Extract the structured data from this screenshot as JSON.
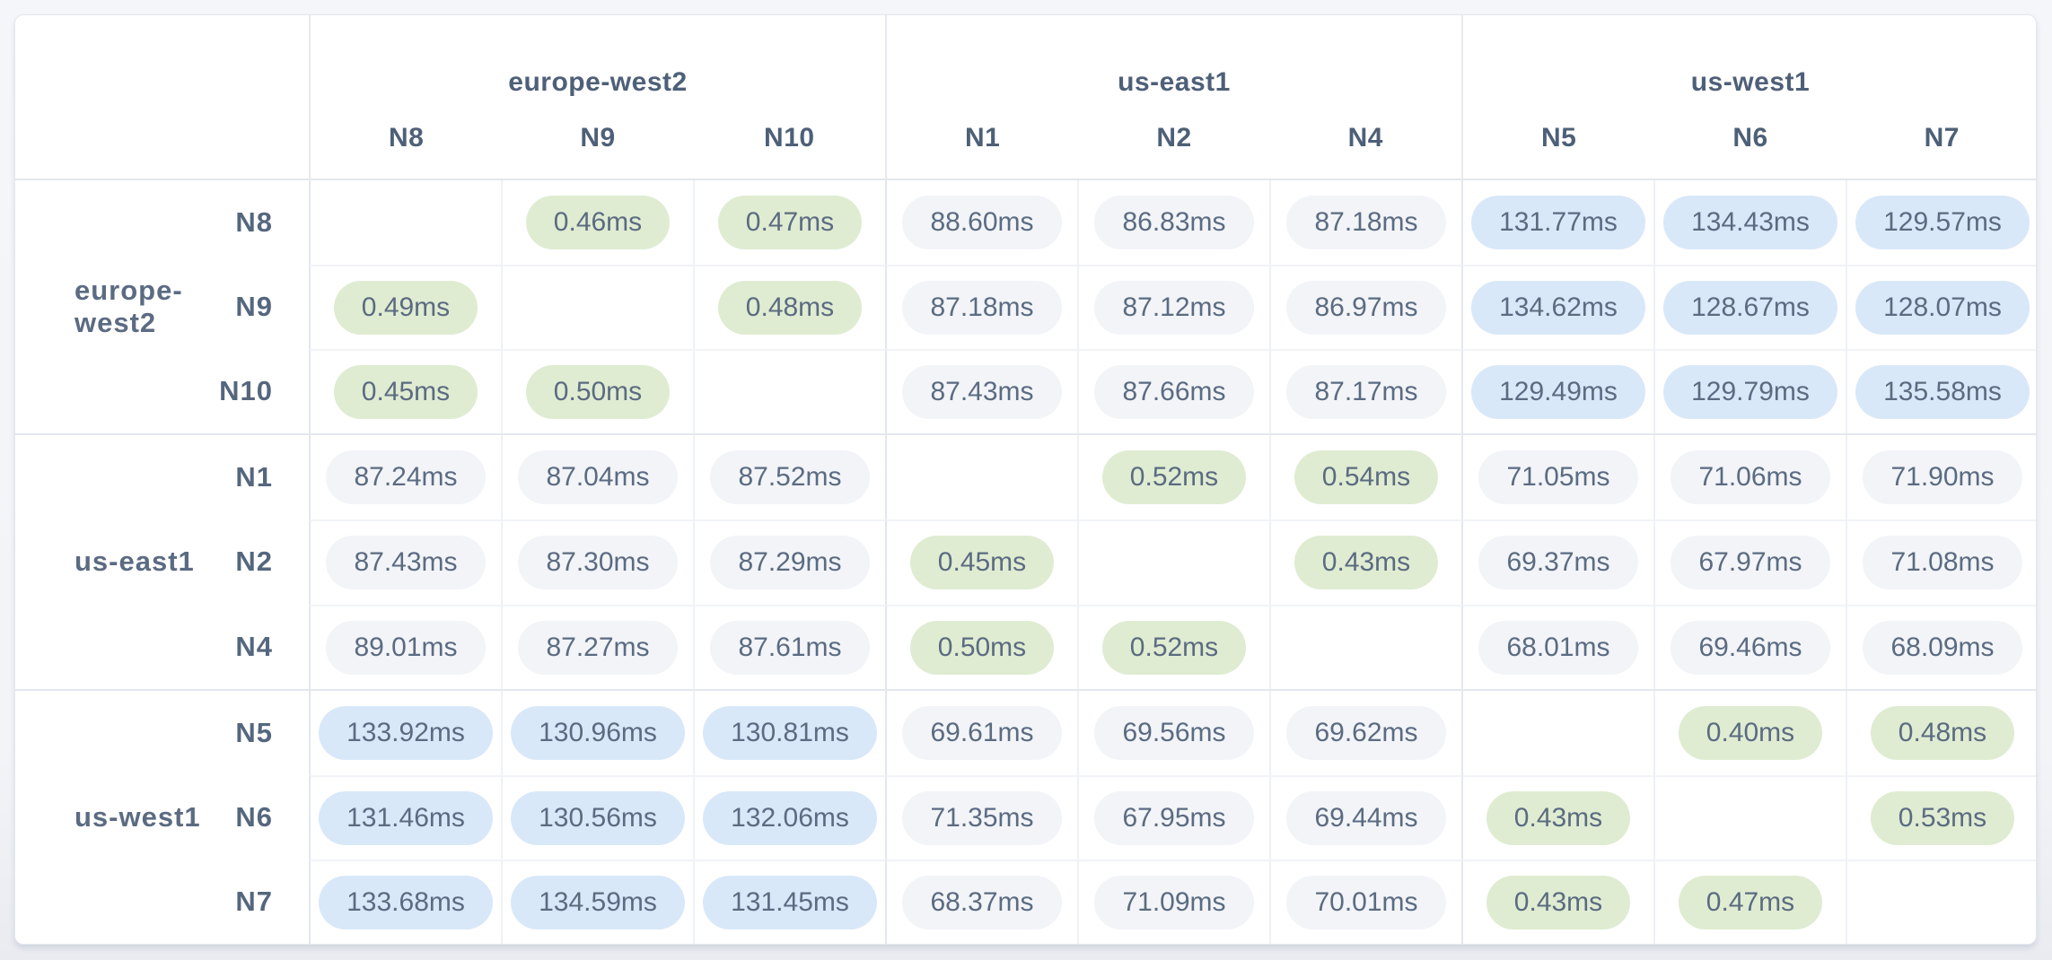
{
  "matrix": {
    "unit": "ms",
    "columns": [
      "N8",
      "N9",
      "N10",
      "N1",
      "N2",
      "N4",
      "N5",
      "N6",
      "N7"
    ],
    "groups": [
      {
        "region": "europe-west2",
        "nodes": [
          "N8",
          "N9",
          "N10"
        ]
      },
      {
        "region": "us-east1",
        "nodes": [
          "N1",
          "N2",
          "N4"
        ]
      },
      {
        "region": "us-west1",
        "nodes": [
          "N5",
          "N6",
          "N7"
        ]
      }
    ]
  },
  "chart_data": {
    "type": "heatmap",
    "title": "",
    "unit": "ms",
    "rows": [
      "N8",
      "N9",
      "N10",
      "N1",
      "N2",
      "N4",
      "N5",
      "N6",
      "N7"
    ],
    "columns": [
      "N8",
      "N9",
      "N10",
      "N1",
      "N2",
      "N4",
      "N5",
      "N6",
      "N7"
    ],
    "row_groups": [
      {
        "region": "europe-west2",
        "nodes": [
          "N8",
          "N9",
          "N10"
        ]
      },
      {
        "region": "us-east1",
        "nodes": [
          "N1",
          "N2",
          "N4"
        ]
      },
      {
        "region": "us-west1",
        "nodes": [
          "N5",
          "N6",
          "N7"
        ]
      }
    ],
    "values_ms": [
      [
        null,
        0.46,
        0.47,
        88.6,
        86.83,
        87.18,
        131.77,
        134.43,
        129.57
      ],
      [
        0.49,
        null,
        0.48,
        87.18,
        87.12,
        86.97,
        134.62,
        128.67,
        128.07
      ],
      [
        0.45,
        0.5,
        null,
        87.43,
        87.66,
        87.17,
        129.49,
        129.79,
        135.58
      ],
      [
        87.24,
        87.04,
        87.52,
        null,
        0.52,
        0.54,
        71.05,
        71.06,
        71.9
      ],
      [
        87.43,
        87.3,
        87.29,
        0.45,
        null,
        0.43,
        69.37,
        67.97,
        71.08
      ],
      [
        89.01,
        87.27,
        87.61,
        0.5,
        0.52,
        null,
        68.01,
        69.46,
        68.09
      ],
      [
        133.92,
        130.96,
        130.81,
        69.61,
        69.56,
        69.62,
        null,
        0.4,
        0.48
      ],
      [
        131.46,
        130.56,
        132.06,
        71.35,
        67.95,
        69.44,
        0.43,
        null,
        0.53
      ],
      [
        133.68,
        134.59,
        131.45,
        68.37,
        71.09,
        70.01,
        0.43,
        0.47,
        null
      ]
    ],
    "color_thresholds_ms": {
      "low_max": 1,
      "mid_max": 100
    },
    "colors": {
      "low": "#dfecd2",
      "mid": "#f2f4f8",
      "high": "#d9e8f8"
    },
    "legend": "none",
    "grid": "on"
  }
}
